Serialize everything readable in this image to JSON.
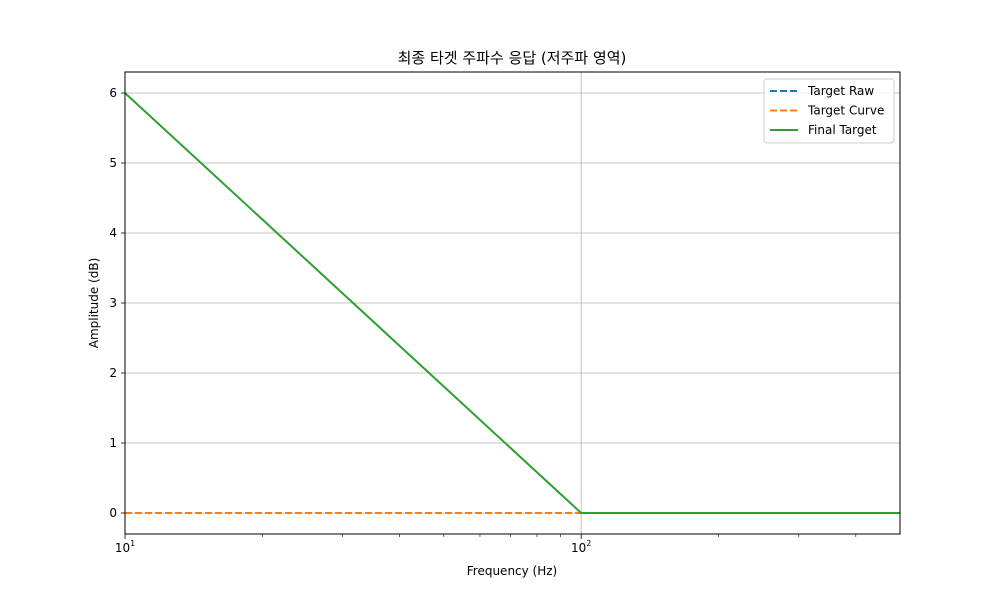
{
  "chart_data": {
    "type": "line",
    "title": "최종 타겟 주파수 응답 (저주파 영역)",
    "xlabel": "Frequency (Hz)",
    "ylabel": "Amplitude (dB)",
    "xscale": "log",
    "xlim": [
      10,
      500
    ],
    "ylim": [
      -0.3,
      6.3
    ],
    "xticks": [
      {
        "value": 10,
        "base": "10",
        "exp": "1"
      },
      {
        "value": 100,
        "base": "10",
        "exp": "2"
      }
    ],
    "yticks": [
      0,
      1,
      2,
      3,
      4,
      5,
      6
    ],
    "grid": true,
    "legend_position": "top-right",
    "series": [
      {
        "name": "Target Raw",
        "style": "dashed",
        "color": "#1f77b4",
        "x": [
          10,
          100,
          500
        ],
        "y": [
          0,
          0,
          0
        ]
      },
      {
        "name": "Target Curve",
        "style": "dashed",
        "color": "#ff7f0e",
        "x": [
          10,
          100
        ],
        "y": [
          0,
          0
        ]
      },
      {
        "name": "Final Target",
        "style": "solid",
        "color": "#2ca02c",
        "x": [
          10,
          100,
          500
        ],
        "y": [
          6,
          0,
          0
        ]
      }
    ]
  }
}
